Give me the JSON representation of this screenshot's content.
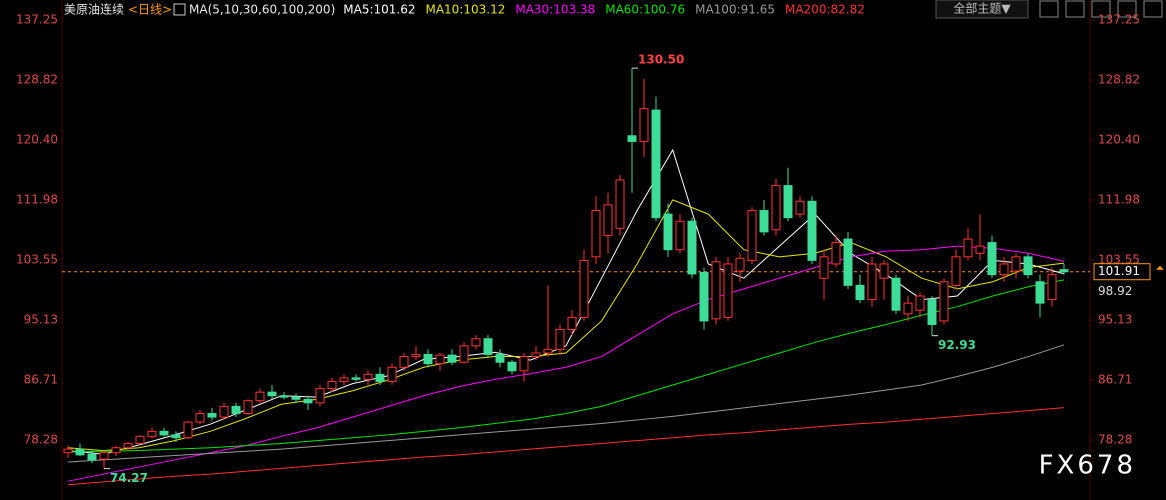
{
  "chart_data": {
    "type": "candlestick",
    "symbol": "美原油连续",
    "period": "<日线>",
    "indicator": "MA(5,10,30,60,100,200)",
    "theme_button": "全部主题▼",
    "watermark": "FX678",
    "ylim": [
      70.28,
      140.06
    ],
    "yticks": [
      137.25,
      128.82,
      {
        "value": 120.4,
        "label": "120.40"
      },
      111.98,
      103.55,
      95.13,
      86.71,
      78.28
    ],
    "grid": false,
    "up_color": "#ff3232",
    "down_color": "#3ddc97",
    "open": [
      76.5,
      77.0,
      76.3,
      75.6,
      76.5,
      77.2,
      77.8,
      78.8,
      79.5,
      79.0,
      78.6,
      80.8,
      82.0,
      81.5,
      83.0,
      82.0,
      83.8,
      85.0,
      84.5,
      84.3,
      84.0,
      83.5,
      85.5,
      86.5,
      87.0,
      86.8,
      87.5,
      86.5,
      88.5,
      90.0,
      90.3,
      89.0,
      90.2,
      89.2,
      91.5,
      92.5,
      90.3,
      89.2,
      88.0,
      90.0,
      90.5,
      91.0,
      93.8,
      95.5,
      104.0,
      107.0,
      108.0,
      121.0,
      120.2,
      124.6,
      110.0,
      105.0,
      109.0,
      101.8,
      95.3,
      95.5,
      102.0,
      103.5,
      110.5,
      107.8,
      114.0,
      110.0,
      111.8,
      101.0,
      103.0,
      106.5,
      100.0,
      98.0,
      101.0,
      101.0,
      96.0,
      96.5,
      98.0,
      95.0,
      100.0,
      104.0,
      104.5,
      106.0,
      101.5,
      102.0,
      104.0,
      100.5,
      98.0,
      102.2
    ],
    "high": [
      77.5,
      77.8,
      77.0,
      76.8,
      77.5,
      78.0,
      79.0,
      80.0,
      80.0,
      79.5,
      81.0,
      82.5,
      82.8,
      83.5,
      83.5,
      84.0,
      85.5,
      86.0,
      85.0,
      84.8,
      84.5,
      86.0,
      87.0,
      87.5,
      87.5,
      88.0,
      88.5,
      89.0,
      90.5,
      91.5,
      91.0,
      90.5,
      91.0,
      92.0,
      93.0,
      93.0,
      91.0,
      89.5,
      90.5,
      91.5,
      100.0,
      94.5,
      96.5,
      105.0,
      112.5,
      113.0,
      115.5,
      130.5,
      129.0,
      126.5,
      111.5,
      110.0,
      109.5,
      102.5,
      104.0,
      104.0,
      104.5,
      111.0,
      112.0,
      115.0,
      116.5,
      112.5,
      112.5,
      105.0,
      107.0,
      107.5,
      101.5,
      104.0,
      103.5,
      101.5,
      98.5,
      99.0,
      98.5,
      101.0,
      105.0,
      108.0,
      110.0,
      107.0,
      104.0,
      104.5,
      104.5,
      101.5,
      102.5,
      103.0
    ],
    "low": [
      75.8,
      76.0,
      75.0,
      74.27,
      76.0,
      76.8,
      77.5,
      78.5,
      78.8,
      78.0,
      78.4,
      80.5,
      81.0,
      81.2,
      81.5,
      81.8,
      83.5,
      84.0,
      84.0,
      83.5,
      82.5,
      83.0,
      85.0,
      86.0,
      86.5,
      86.0,
      86.0,
      86.0,
      88.0,
      89.5,
      88.5,
      88.0,
      88.8,
      89.0,
      91.0,
      89.8,
      88.5,
      87.5,
      86.5,
      89.5,
      90.0,
      90.2,
      93.0,
      95.0,
      103.0,
      104.5,
      107.0,
      113.0,
      118.0,
      109.0,
      104.0,
      104.5,
      101.0,
      93.8,
      94.5,
      95.0,
      100.5,
      103.0,
      107.0,
      107.0,
      109.0,
      109.5,
      103.0,
      98.0,
      102.5,
      99.5,
      97.5,
      97.0,
      98.0,
      96.0,
      95.0,
      95.5,
      92.93,
      94.5,
      99.5,
      103.5,
      103.5,
      101.0,
      100.5,
      101.0,
      101.0,
      95.5,
      97.0,
      101.5
    ],
    "close": [
      77.0,
      76.2,
      75.5,
      76.5,
      77.2,
      77.8,
      78.8,
      79.5,
      79.0,
      78.6,
      80.8,
      82.0,
      81.5,
      83.0,
      82.0,
      83.8,
      85.0,
      84.5,
      84.3,
      84.0,
      83.5,
      85.5,
      86.5,
      87.0,
      86.8,
      87.5,
      86.5,
      88.5,
      90.0,
      90.3,
      89.0,
      90.2,
      89.2,
      91.5,
      92.5,
      90.3,
      89.2,
      88.0,
      90.0,
      90.5,
      91.0,
      93.8,
      95.5,
      103.5,
      110.5,
      111.3,
      114.8,
      120.2,
      124.8,
      109.5,
      105.0,
      109.0,
      101.6,
      95.0,
      103.3,
      103.0,
      103.8,
      110.5,
      107.5,
      114.0,
      109.5,
      111.8,
      103.5,
      104.0,
      106.0,
      100.0,
      98.0,
      103.0,
      103.0,
      96.5,
      97.5,
      98.5,
      94.5,
      100.5,
      104.0,
      106.5,
      105.5,
      101.5,
      103.0,
      104.0,
      101.5,
      97.5,
      101.5,
      101.91
    ],
    "series": [
      {
        "name": "MA5:101.62",
        "color": "#ffffff",
        "values": [
          76.8,
          76.3,
          77.6,
          79.0,
          80.5,
          82.5,
          84.5,
          84.3,
          86.2,
          87.3,
          89.6,
          90.0,
          90.6,
          89.5,
          91.5,
          101,
          110.5,
          119,
          103,
          101,
          105.5,
          110,
          104.5,
          101.5,
          98,
          98.5,
          103.5,
          103,
          101.62
        ]
      },
      {
        "name": "MA10:103.12",
        "color": "#e6e600",
        "values": [
          77.2,
          76.8,
          77.2,
          78.2,
          79.5,
          81.3,
          83.3,
          84.0,
          85.2,
          86.7,
          88.5,
          89.5,
          90.0,
          90.0,
          90.5,
          95,
          103,
          112,
          110,
          105,
          104,
          104.5,
          106,
          104,
          101,
          99.5,
          100.5,
          102.5,
          103.12
        ]
      },
      {
        "name": "MA30:103.38",
        "color": "#ff00ff",
        "values": [
          72.5,
          73.5,
          74.5,
          75.5,
          76.5,
          77.5,
          78.8,
          80.0,
          81.5,
          83.0,
          84.5,
          85.8,
          86.8,
          87.6,
          88.5,
          90,
          93,
          96,
          98,
          99.5,
          101,
          102.5,
          104,
          104.8,
          105,
          105.5,
          105.2,
          104.5,
          103.38
        ]
      },
      {
        "name": "MA60:100.76",
        "color": "#00e600",
        "values": [
          76.6,
          76.7,
          76.8,
          77.0,
          77.2,
          77.5,
          77.8,
          78.2,
          78.6,
          79.0,
          79.5,
          80.0,
          80.6,
          81.2,
          82.0,
          83.0,
          84.5,
          86.0,
          87.5,
          89.0,
          90.5,
          92.0,
          93.3,
          94.5,
          95.8,
          97.0,
          98.5,
          99.8,
          100.76
        ]
      },
      {
        "name": "MA100:91.65",
        "color": "#9a9a9a",
        "values": [
          75.2,
          75.5,
          75.8,
          76.1,
          76.4,
          76.7,
          77.0,
          77.4,
          77.8,
          78.2,
          78.6,
          79.0,
          79.4,
          79.8,
          80.2,
          80.6,
          81.1,
          81.6,
          82.2,
          82.8,
          83.4,
          84.0,
          84.6,
          85.3,
          86.0,
          87.2,
          88.5,
          90.0,
          91.65
        ]
      },
      {
        "name": "MA200:82.82",
        "color": "#ff3030",
        "values": [
          72.0,
          72.4,
          72.8,
          73.2,
          73.5,
          73.9,
          74.3,
          74.7,
          75.1,
          75.5,
          75.9,
          76.2,
          76.6,
          77.0,
          77.4,
          77.8,
          78.2,
          78.6,
          79.0,
          79.3,
          79.7,
          80.1,
          80.5,
          80.8,
          81.2,
          81.6,
          82.0,
          82.4,
          82.82
        ]
      }
    ],
    "annotations": [
      {
        "value": 130.5,
        "label": "130.50"
      },
      92.93,
      74.27
    ],
    "last_price": 101.91,
    "prev_price": 98.92
  }
}
